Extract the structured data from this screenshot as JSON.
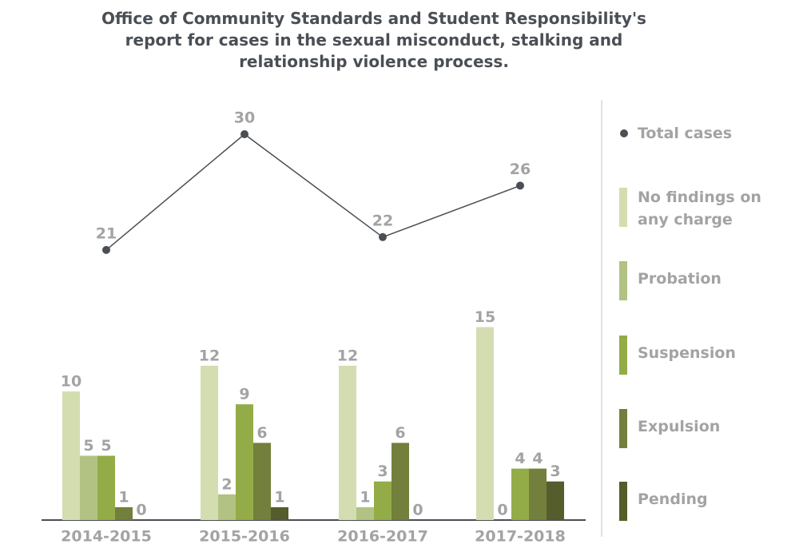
{
  "chart_data": {
    "type": "bar",
    "title": "Office of Community Standards and Student Responsibility's report for cases in the sexual misconduct, stalking and relationship violence process.",
    "categories": [
      "2014-2015",
      "2015-2016",
      "2016-2017",
      "2017-2018"
    ],
    "series": [
      {
        "name": "Total cases",
        "type": "line",
        "color": "#4a4f55",
        "values": [
          21,
          30,
          22,
          26
        ]
      },
      {
        "name": "No findings on any charge",
        "color": "#d3ddb0",
        "values": [
          10,
          12,
          12,
          15
        ]
      },
      {
        "name": "Probation",
        "color": "#b2c283",
        "values": [
          5,
          2,
          1,
          0
        ]
      },
      {
        "name": "Suspension",
        "color": "#93ac47",
        "values": [
          5,
          9,
          3,
          4
        ]
      },
      {
        "name": "Expulsion",
        "color": "#737f3c",
        "values": [
          1,
          6,
          6,
          4
        ]
      },
      {
        "name": "Pending",
        "color": "#545d2b",
        "values": [
          0,
          1,
          0,
          3
        ]
      }
    ]
  }
}
